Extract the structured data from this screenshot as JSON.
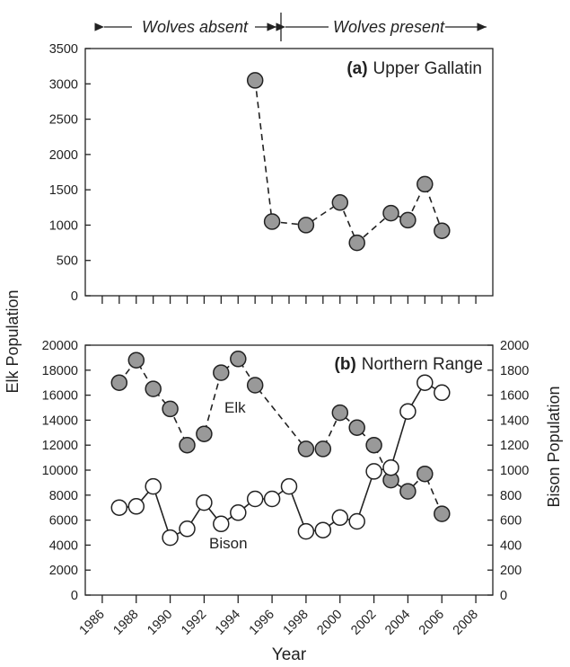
{
  "header": {
    "absent_label": "Wolves absent",
    "present_label": "Wolves present"
  },
  "y_label_left": "Elk Population",
  "y_label_right": "Bison Population",
  "x_label": "Year",
  "colors": {
    "elk_fill": "#999999",
    "bison_fill": "#ffffff",
    "line": "#222222"
  },
  "chart_data": [
    {
      "type": "line",
      "panel_tag": "(a)",
      "panel_name": "Upper Gallatin",
      "ylim": [
        0,
        3500
      ],
      "yticks": [
        0,
        500,
        1000,
        1500,
        2000,
        2500,
        3000,
        3500
      ],
      "xlim": [
        1985,
        2009
      ],
      "xticks": [
        1986,
        1987,
        1988,
        1989,
        1990,
        1991,
        1992,
        1993,
        1994,
        1995,
        1996,
        1997,
        1998,
        1999,
        2000,
        2001,
        2002,
        2003,
        2004,
        2005,
        2006,
        2007,
        2008
      ],
      "series": [
        {
          "style": "dashed",
          "marker_fill": "#999999",
          "x": [
            1995,
            1996,
            1998,
            2000,
            2001,
            2003,
            2004,
            2005,
            2006
          ],
          "values": [
            3050,
            1050,
            1000,
            1320,
            750,
            1170,
            1070,
            1580,
            920
          ]
        }
      ]
    },
    {
      "type": "line",
      "panel_tag": "(b)",
      "panel_name": "Northern Range",
      "ylim": [
        0,
        20000
      ],
      "yticks": [
        0,
        2000,
        4000,
        6000,
        8000,
        10000,
        12000,
        14000,
        16000,
        18000,
        20000
      ],
      "y2lim": [
        0,
        2000
      ],
      "y2ticks": [
        0,
        200,
        400,
        600,
        800,
        1000,
        1200,
        1400,
        1600,
        1800,
        2000
      ],
      "xlim": [
        1985,
        2009
      ],
      "xticks": [
        1986,
        1988,
        1990,
        1992,
        1994,
        1996,
        1998,
        2000,
        2002,
        2004,
        2006,
        2008
      ],
      "series": [
        {
          "name": "Elk",
          "axis": "left",
          "style": "dashed",
          "marker_fill": "#999999",
          "x": [
            1987,
            1988,
            1989,
            1990,
            1991,
            1992,
            1993,
            1994,
            1995,
            1998,
            1999,
            2000,
            2001,
            2002,
            2003,
            2004,
            2005,
            2006
          ],
          "values": [
            17000,
            18800,
            16500,
            14900,
            12000,
            12900,
            17800,
            18900,
            16800,
            11700,
            11700,
            14600,
            13400,
            12000,
            9200,
            8300,
            9700,
            6500
          ]
        },
        {
          "name": "Bison",
          "axis": "right",
          "style": "solid",
          "marker_fill": "#ffffff",
          "x": [
            1987,
            1988,
            1989,
            1990,
            1991,
            1992,
            1993,
            1994,
            1995,
            1996,
            1997,
            1998,
            1999,
            2000,
            2001,
            2002,
            2003,
            2004,
            2005,
            2006
          ],
          "values": [
            700,
            710,
            870,
            460,
            530,
            740,
            570,
            660,
            770,
            770,
            870,
            510,
            520,
            620,
            590,
            990,
            1020,
            1470,
            1700,
            1620
          ]
        }
      ]
    }
  ]
}
